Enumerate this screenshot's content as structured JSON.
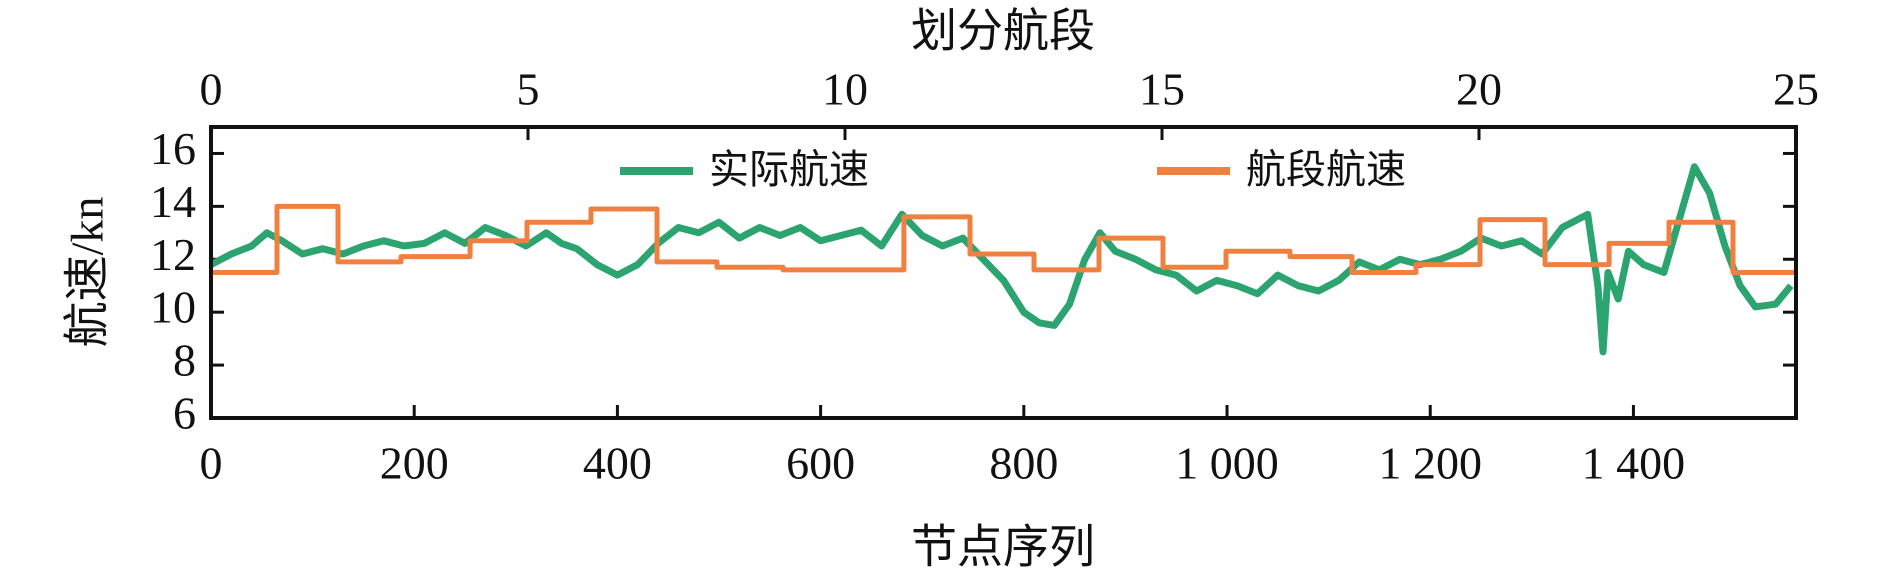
{
  "chart_data": {
    "type": "line",
    "xlabel": "节点序列",
    "ylabel": "航速/kn",
    "x2label": "划分航段",
    "xlim": [
      0,
      1560
    ],
    "xticks": [
      0,
      200,
      400,
      600,
      800,
      {
        "value": 1000,
        "label": "1 000"
      },
      {
        "value": 1200,
        "label": "1 200"
      },
      {
        "value": 1400,
        "label": "1 400"
      }
    ],
    "x2lim": [
      0,
      25
    ],
    "x2ticks": [
      0,
      5,
      10,
      15,
      20,
      25
    ],
    "ylim": [
      6,
      17
    ],
    "yticks": [
      6,
      8,
      10,
      12,
      14,
      16
    ],
    "legend": "top",
    "series": [
      {
        "name": "实际航速",
        "color": "#2ca470",
        "x": [
          0,
          20,
          40,
          55,
          70,
          90,
          110,
          130,
          150,
          170,
          190,
          210,
          230,
          250,
          270,
          290,
          310,
          330,
          345,
          360,
          380,
          400,
          420,
          440,
          460,
          480,
          500,
          520,
          540,
          560,
          580,
          600,
          620,
          640,
          660,
          680,
          700,
          720,
          740,
          760,
          780,
          800,
          815,
          830,
          845,
          860,
          875,
          890,
          910,
          930,
          950,
          970,
          990,
          1010,
          1030,
          1050,
          1070,
          1090,
          1110,
          1130,
          1150,
          1170,
          1190,
          1210,
          1230,
          1250,
          1270,
          1290,
          1310,
          1330,
          1355,
          1365,
          1370,
          1375,
          1385,
          1395,
          1410,
          1430,
          1445,
          1460,
          1475,
          1490,
          1505,
          1520,
          1540,
          1555
        ],
        "values": [
          11.8,
          12.2,
          12.5,
          13.0,
          12.7,
          12.2,
          12.4,
          12.2,
          12.5,
          12.7,
          12.5,
          12.6,
          13.0,
          12.6,
          13.2,
          12.9,
          12.5,
          13.0,
          12.6,
          12.4,
          11.8,
          11.4,
          11.8,
          12.6,
          13.2,
          13.0,
          13.4,
          12.8,
          13.2,
          12.9,
          13.2,
          12.7,
          12.9,
          13.1,
          12.5,
          13.7,
          12.9,
          12.5,
          12.8,
          12.0,
          11.2,
          10.0,
          9.6,
          9.5,
          10.3,
          12.0,
          13.0,
          12.3,
          12.0,
          11.6,
          11.4,
          10.8,
          11.2,
          11.0,
          10.7,
          11.4,
          11.0,
          10.8,
          11.2,
          11.9,
          11.6,
          12.0,
          11.8,
          12.0,
          12.3,
          12.8,
          12.5,
          12.7,
          12.2,
          13.2,
          13.7,
          11.0,
          8.5,
          11.5,
          10.5,
          12.3,
          11.8,
          11.5,
          13.5,
          15.5,
          14.5,
          12.5,
          11.0,
          10.2,
          10.3,
          11.0
        ]
      },
      {
        "name": "航段航速",
        "color": "#f08040",
        "x": [
          0,
          65,
          65,
          125,
          125,
          187,
          187,
          255,
          255,
          311,
          311,
          374,
          374,
          439,
          439,
          498,
          498,
          563,
          563,
          682,
          682,
          747,
          747,
          810,
          810,
          874,
          874,
          937,
          937,
          999,
          999,
          1062,
          1062,
          1123,
          1123,
          1186,
          1186,
          1249,
          1249,
          1313,
          1313,
          1376,
          1376,
          1435,
          1435,
          1498,
          1498,
          1560
        ],
        "values": [
          11.5,
          11.5,
          14.0,
          14.0,
          11.9,
          11.9,
          12.1,
          12.1,
          12.7,
          12.7,
          13.4,
          13.4,
          13.9,
          13.9,
          11.9,
          11.9,
          11.7,
          11.7,
          11.6,
          11.6,
          13.6,
          13.6,
          12.2,
          12.2,
          11.6,
          11.6,
          12.8,
          12.8,
          11.7,
          11.7,
          12.3,
          12.3,
          12.1,
          12.1,
          11.5,
          11.5,
          11.8,
          11.8,
          13.5,
          13.5,
          11.8,
          11.8,
          12.6,
          12.6,
          13.4,
          13.4,
          11.5,
          11.5
        ]
      }
    ]
  }
}
